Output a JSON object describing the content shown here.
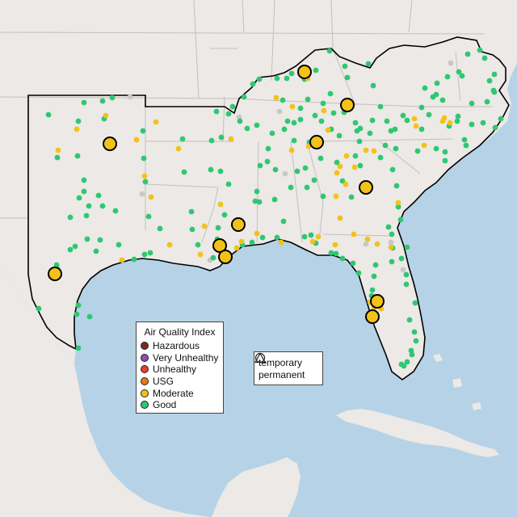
{
  "legend": {
    "title": "Air Quality Index",
    "categories": [
      {
        "label": "Hazardous",
        "color": "#7e2a1e"
      },
      {
        "label": "Very Unhealthy",
        "color": "#8f4fb0"
      },
      {
        "label": "Unhealthy",
        "color": "#e8412c"
      },
      {
        "label": "USG",
        "color": "#e07b1a"
      },
      {
        "label": "Moderate",
        "color": "#f2c218"
      },
      {
        "label": "Good",
        "color": "#2ec772"
      }
    ]
  },
  "monitor_types": [
    {
      "label": "temporary",
      "icon": "circle-outline-icon"
    },
    {
      "label": "permanent",
      "icon": "triangle-outline-icon"
    }
  ],
  "colors": {
    "water": "#b6d2e6",
    "land": "#ece9e6",
    "state_lines": "#c2bfbc",
    "region_outline": "#000000",
    "no_data": "#c8c8c8",
    "good": "#2ec772",
    "moderate": "#f2c218"
  }
}
